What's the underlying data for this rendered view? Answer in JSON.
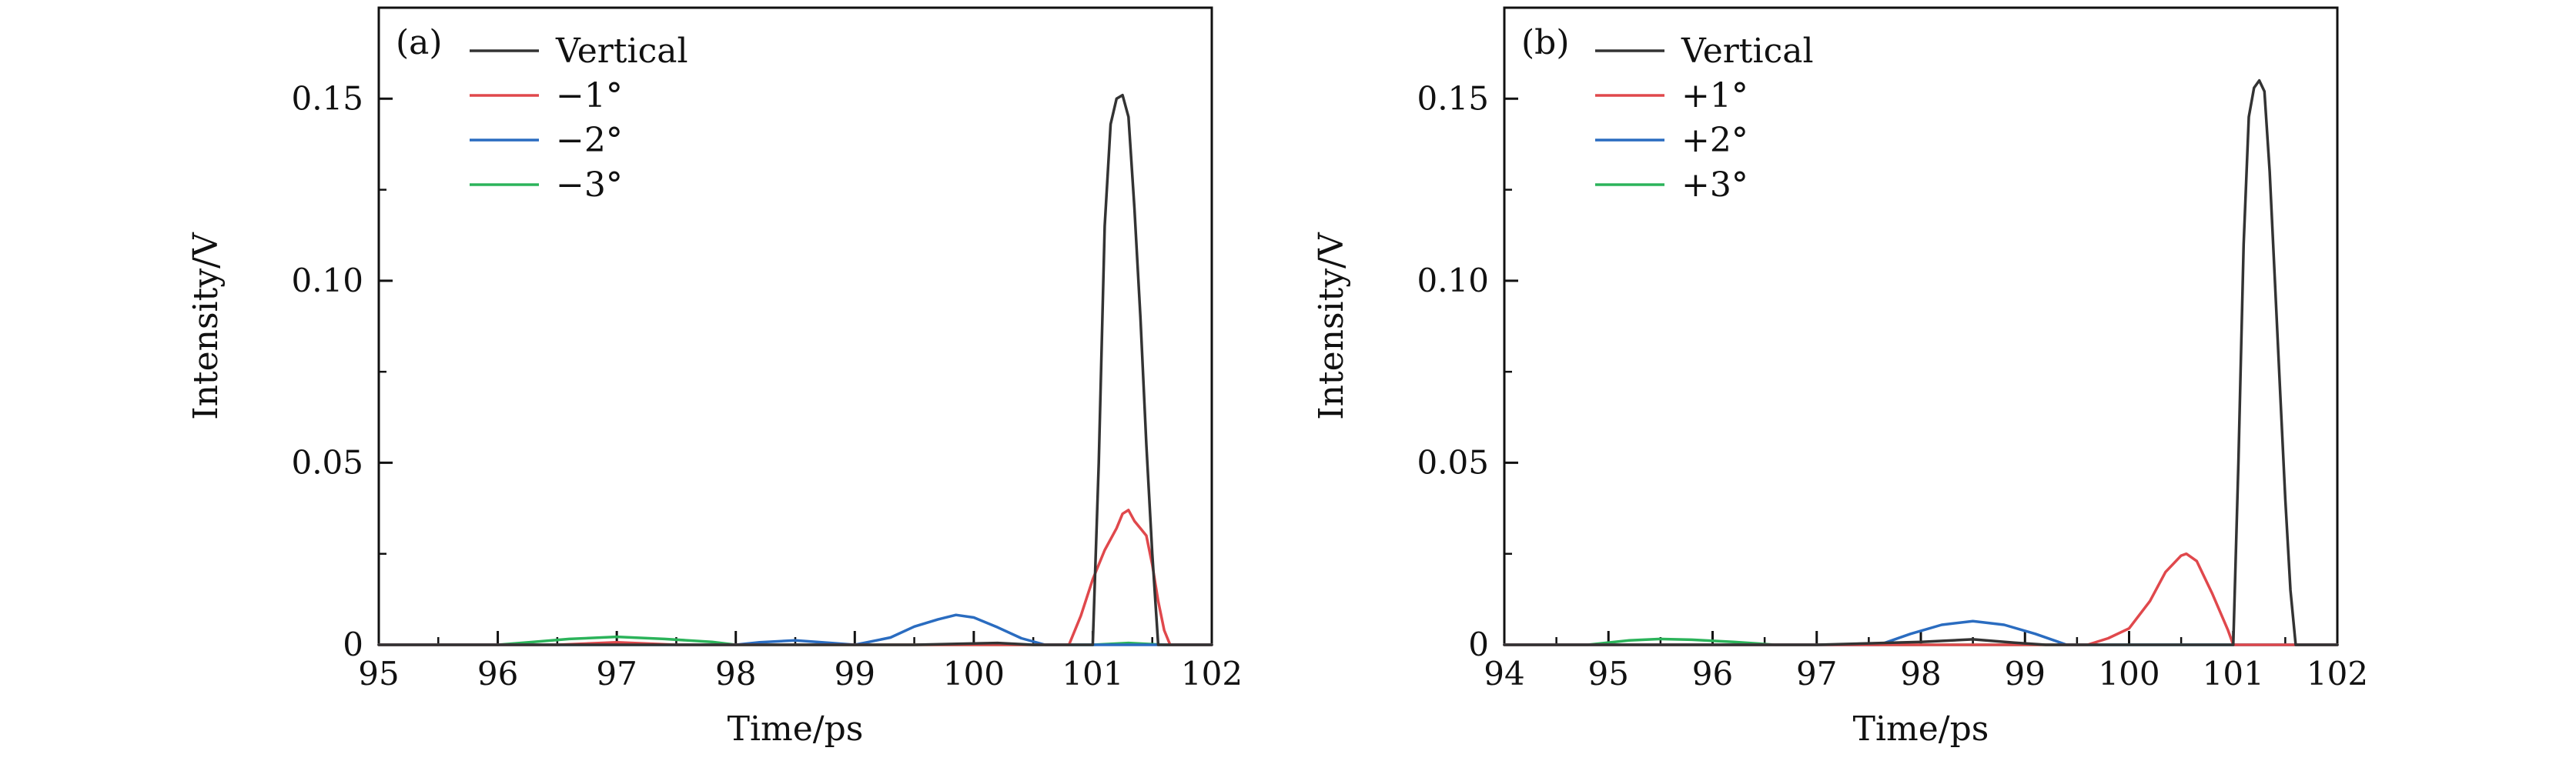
{
  "colors": {
    "vertical": "#333333",
    "one_deg": "#e0484c",
    "two_deg": "#2a6cc0",
    "three_deg": "#2bb35a",
    "axis": "#111111"
  },
  "chart_data": [
    {
      "type": "line",
      "panel_label": "(a)",
      "xlabel": "Time/ps",
      "ylabel": "Intensity/V",
      "xlim": [
        95,
        102
      ],
      "ylim": [
        0,
        0.175
      ],
      "x_ticks": [
        95,
        96,
        97,
        98,
        99,
        100,
        101,
        102
      ],
      "x_tick_labels": [
        "95",
        "96",
        "97",
        "98",
        "99",
        "100",
        "101",
        "102"
      ],
      "y_ticks": [
        0,
        0.05,
        0.1,
        0.15
      ],
      "y_tick_labels": [
        "0",
        "0.05",
        "0.10",
        "0.15"
      ],
      "grid": false,
      "legend_position": "top-left",
      "series": [
        {
          "name": "Vertical",
          "color_key": "vertical",
          "x": [
            95,
            99.5,
            100.2,
            100.5,
            101.0,
            101.05,
            101.1,
            101.15,
            101.2,
            101.25,
            101.3,
            101.35,
            101.4,
            101.45,
            101.5,
            101.55,
            102
          ],
          "y": [
            0,
            0,
            0.0005,
            0,
            0,
            0.05,
            0.115,
            0.143,
            0.15,
            0.151,
            0.145,
            0.12,
            0.09,
            0.055,
            0.025,
            0,
            0
          ]
        },
        {
          "name": "−1°",
          "color_key": "one_deg",
          "x": [
            95,
            96.5,
            97.0,
            97.5,
            100.8,
            100.9,
            101.0,
            101.1,
            101.2,
            101.25,
            101.3,
            101.35,
            101.4,
            101.45,
            101.5,
            101.55,
            101.6,
            101.65,
            102
          ],
          "y": [
            0,
            0,
            0.0007,
            0,
            0,
            0.008,
            0.018,
            0.026,
            0.032,
            0.036,
            0.037,
            0.034,
            0.032,
            0.03,
            0.022,
            0.012,
            0.004,
            0,
            0
          ]
        },
        {
          "name": "−2°",
          "color_key": "two_deg",
          "x": [
            95,
            98.0,
            98.2,
            98.5,
            98.8,
            99.0,
            99.3,
            99.5,
            99.7,
            99.85,
            100.0,
            100.2,
            100.4,
            100.6,
            102
          ],
          "y": [
            0,
            0,
            0.0007,
            0.0012,
            0.0005,
            0,
            0.002,
            0.005,
            0.007,
            0.0082,
            0.0075,
            0.0048,
            0.0018,
            0,
            0
          ]
        },
        {
          "name": "−3°",
          "color_key": "three_deg",
          "x": [
            95,
            96.0,
            96.3,
            96.6,
            97.0,
            97.4,
            97.8,
            98.0,
            101.0,
            101.3,
            101.6,
            102
          ],
          "y": [
            0,
            0,
            0.0008,
            0.0016,
            0.0022,
            0.0016,
            0.0008,
            0,
            0,
            0.0005,
            0,
            0
          ]
        }
      ]
    },
    {
      "type": "line",
      "panel_label": "(b)",
      "xlabel": "Time/ps",
      "ylabel": "Intensity/V",
      "xlim": [
        94,
        102
      ],
      "ylim": [
        0,
        0.175
      ],
      "x_ticks": [
        94,
        95,
        96,
        97,
        98,
        99,
        100,
        101,
        102
      ],
      "x_tick_labels": [
        "94",
        "95",
        "96",
        "97",
        "98",
        "99",
        "100",
        "101",
        "102"
      ],
      "y_ticks": [
        0,
        0.05,
        0.1,
        0.15
      ],
      "y_tick_labels": [
        "0",
        "0.05",
        "0.10",
        "0.15"
      ],
      "grid": false,
      "legend_position": "top-left",
      "series": [
        {
          "name": "Vertical",
          "color_key": "vertical",
          "x": [
            94,
            97.0,
            97.5,
            98.0,
            98.5,
            98.9,
            99.2,
            101.0,
            101.05,
            101.1,
            101.15,
            101.2,
            101.25,
            101.3,
            101.35,
            101.4,
            101.45,
            101.5,
            101.55,
            101.6,
            102
          ],
          "y": [
            0,
            0,
            0.0004,
            0.0008,
            0.0015,
            0.0006,
            0,
            0,
            0.05,
            0.11,
            0.145,
            0.153,
            0.155,
            0.152,
            0.13,
            0.1,
            0.07,
            0.04,
            0.015,
            0,
            0
          ]
        },
        {
          "name": "+1°",
          "color_key": "one_deg",
          "x": [
            94,
            99.6,
            99.8,
            100.0,
            100.2,
            100.35,
            100.5,
            100.55,
            100.65,
            100.8,
            100.95,
            101.0,
            102
          ],
          "y": [
            0,
            0,
            0.0018,
            0.0045,
            0.012,
            0.02,
            0.0245,
            0.025,
            0.023,
            0.014,
            0.004,
            0,
            0
          ]
        },
        {
          "name": "+2°",
          "color_key": "two_deg",
          "x": [
            94,
            97.6,
            97.9,
            98.2,
            98.5,
            98.8,
            99.1,
            99.4,
            102
          ],
          "y": [
            0,
            0,
            0.003,
            0.0055,
            0.0065,
            0.0055,
            0.003,
            0,
            0
          ]
        },
        {
          "name": "+3°",
          "color_key": "three_deg",
          "x": [
            94,
            94.8,
            95.2,
            95.5,
            95.8,
            96.2,
            96.6,
            102
          ],
          "y": [
            0,
            0,
            0.0012,
            0.0016,
            0.0014,
            0.0008,
            0,
            0
          ]
        }
      ]
    }
  ]
}
